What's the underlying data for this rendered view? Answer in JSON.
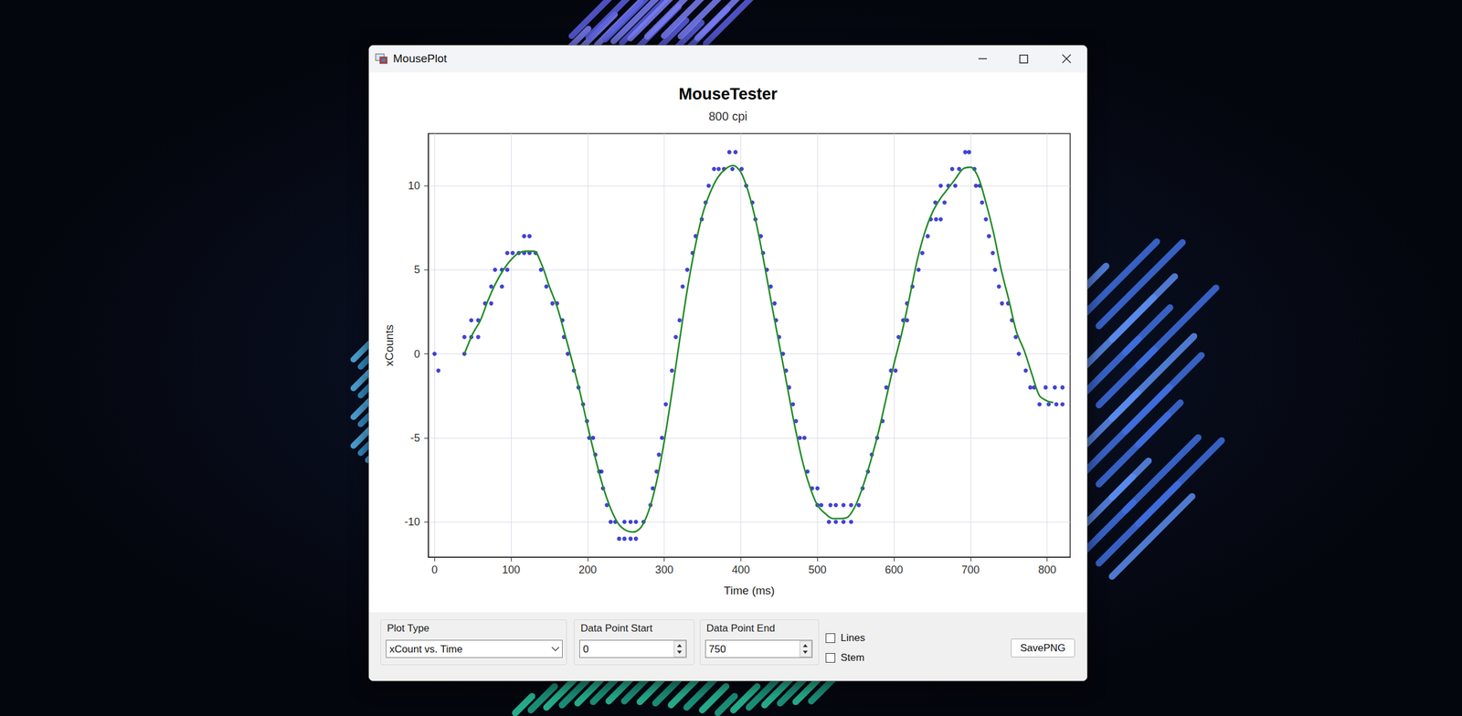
{
  "window": {
    "title": "MousePlot"
  },
  "controls": {
    "plot_type": {
      "label": "Plot Type",
      "value": "xCount vs. Time"
    },
    "data_point_start": {
      "label": "Data Point Start",
      "value": 0
    },
    "data_point_end": {
      "label": "Data Point End",
      "value": 750
    },
    "checkboxes": [
      {
        "label": "Lines",
        "checked": false
      },
      {
        "label": "Stem",
        "checked": false
      }
    ],
    "button": "SavePNG"
  },
  "chart_data": {
    "type": "scatter",
    "title": "MouseTester",
    "subtitle": "800 cpi",
    "x_label": "Time (ms)",
    "y_label": "xCounts",
    "xlim": [
      -8,
      830
    ],
    "xticks": [
      0,
      100,
      200,
      300,
      400,
      500,
      600,
      700,
      800
    ],
    "ylim": [
      -12.1,
      13.1
    ],
    "yticks": [
      -10,
      -5,
      0,
      5,
      10
    ],
    "grid": true,
    "series": [
      {
        "type": "scatter",
        "color": "#1414c8",
        "marker": "circle",
        "x": [
          0,
          5,
          39,
          39,
          48,
          48,
          57,
          57,
          66,
          74,
          74,
          79,
          88,
          88,
          95,
          95,
          102,
          110,
          117,
          117,
          124,
          124,
          132,
          139,
          146,
          154,
          160,
          167,
          169,
          174,
          182,
          188,
          194,
          199,
          202,
          207,
          210,
          215,
          218,
          220,
          225,
          230,
          236,
          241,
          248,
          248,
          256,
          256,
          263,
          263,
          273,
          282,
          285,
          290,
          293,
          297,
          302,
          310,
          315,
          320,
          324,
          330,
          337,
          341,
          349,
          354,
          358,
          365,
          371,
          378,
          385,
          389,
          393,
          401,
          407,
          415,
          419,
          426,
          429,
          434,
          439,
          444,
          446,
          450,
          455,
          459,
          463,
          468,
          472,
          477,
          483,
          487,
          493,
          500,
          500,
          505,
          515,
          517,
          524,
          524,
          534,
          534,
          544,
          544,
          554,
          559,
          566,
          571,
          578,
          585,
          590,
          596,
          602,
          606,
          612,
          617,
          617,
          624,
          632,
          637,
          644,
          648,
          655,
          654,
          661,
          661,
          666,
          671,
          676,
          680,
          685,
          693,
          698,
          705,
          707,
          712,
          715,
          720,
          724,
          729,
          732,
          737,
          741,
          749,
          754,
          759,
          763,
          772,
          778,
          783,
          790,
          798,
          802,
          810,
          812,
          820,
          820
        ],
        "values": [
          0,
          -1,
          0,
          1,
          1,
          2,
          1,
          2,
          3,
          3,
          4,
          5,
          4,
          5,
          5,
          6,
          6,
          6,
          6,
          7,
          6,
          7,
          6,
          5,
          4,
          3,
          3,
          2,
          1,
          0,
          -1,
          -2,
          -3,
          -4,
          -5,
          -5,
          -6,
          -7,
          -7,
          -8,
          -9,
          -10,
          -10,
          -11,
          -11,
          -10,
          -10,
          -11,
          -10,
          -11,
          -10,
          -9,
          -8,
          -7,
          -6,
          -5,
          -3,
          -1,
          1,
          2,
          4,
          5,
          6,
          7,
          8,
          9,
          10,
          11,
          11,
          11,
          12,
          11,
          12,
          11,
          10,
          9,
          8,
          7,
          6,
          5,
          4,
          3,
          2,
          1,
          0,
          -1,
          -2,
          -3,
          -4,
          -5,
          -5,
          -7,
          -8,
          -8,
          -9,
          -9,
          -10,
          -9,
          -10,
          -9,
          -9,
          -10,
          -10,
          -9,
          -9,
          -8,
          -7,
          -6,
          -5,
          -4,
          -2,
          -1,
          -1,
          1,
          2,
          2,
          3,
          4,
          5,
          6,
          7,
          8,
          8,
          9,
          10,
          8,
          9,
          10,
          11,
          10,
          11,
          12,
          12,
          11,
          10,
          10,
          9,
          8,
          7,
          6,
          5,
          4,
          3,
          3,
          2,
          1,
          0,
          -1,
          -2,
          -2,
          -3,
          -2,
          -3,
          -2,
          -3,
          -2,
          -3
        ]
      },
      {
        "type": "line",
        "color": "#1f8a24",
        "marker": "none",
        "line_style": "solid",
        "x": [
          39,
          50,
          60,
          70,
          80,
          90,
          100,
          110,
          120,
          130,
          140,
          150,
          160,
          170,
          180,
          190,
          200,
          210,
          220,
          230,
          240,
          250,
          260,
          270,
          280,
          290,
          300,
          310,
          320,
          330,
          340,
          350,
          360,
          370,
          380,
          390,
          400,
          410,
          420,
          430,
          440,
          450,
          460,
          470,
          480,
          490,
          500,
          510,
          520,
          530,
          540,
          550,
          560,
          570,
          580,
          590,
          600,
          610,
          620,
          630,
          640,
          650,
          660,
          670,
          680,
          690,
          700,
          710,
          720,
          730,
          740,
          750,
          760,
          770,
          780,
          790,
          800,
          808
        ],
        "values": [
          0,
          1.2,
          2,
          3.2,
          4.2,
          5,
          5.6,
          6,
          6.1,
          6.1,
          5.3,
          4,
          2.8,
          1.2,
          -0.5,
          -2.3,
          -4.3,
          -6.2,
          -7.9,
          -9.2,
          -10.1,
          -10.5,
          -10.6,
          -10.3,
          -9.3,
          -7.6,
          -5.2,
          -2.3,
          0.8,
          3.8,
          6.3,
          8.3,
          9.6,
          10.5,
          11,
          11.2,
          10.8,
          9.6,
          7.8,
          5.5,
          3,
          0.6,
          -1.8,
          -4.2,
          -6.3,
          -7.9,
          -9,
          -9.5,
          -9.8,
          -9.8,
          -9.7,
          -9,
          -7.8,
          -6.3,
          -4.6,
          -2.6,
          -0.6,
          1.2,
          3.3,
          5.5,
          7.2,
          8.4,
          9.2,
          9.8,
          10.4,
          11,
          11.1,
          10.5,
          9,
          7.2,
          5,
          3.2,
          1.3,
          0.2,
          -1.2,
          -2.5,
          -2.8,
          -2.9
        ]
      }
    ]
  }
}
